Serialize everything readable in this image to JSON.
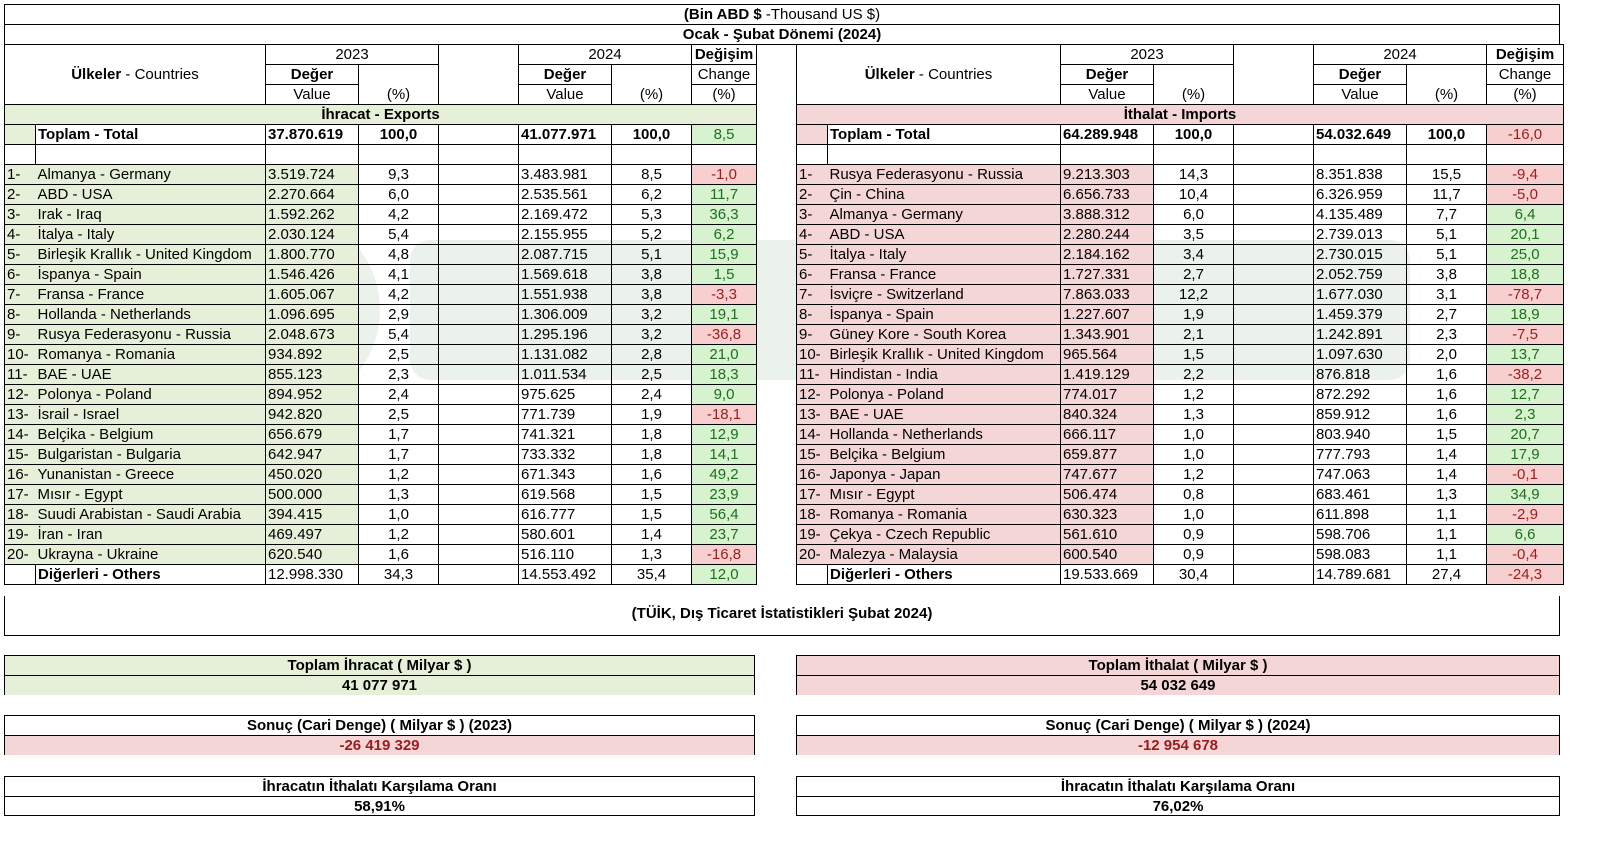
{
  "header": {
    "unit_bold": "(Bin ABD $",
    "unit_rest": " -Thousand US $)",
    "period": "Ocak - Şubat Dönemi (2024)"
  },
  "columns": {
    "countries_bold": "Ülkeler",
    "countries_rest": " - Countries",
    "y2023": "2023",
    "y2024": "2024",
    "deger": "Değer",
    "value": "Value",
    "pct": "(%)",
    "degisim": "Değişim",
    "change": "Change"
  },
  "exports": {
    "section_label": "İhracat - Exports",
    "total": {
      "name": "Toplam - Total",
      "v2023": "37.870.619",
      "p2023": "100,0",
      "v2024": "41.077.971",
      "p2024": "100,0",
      "change": "8,5"
    },
    "rows": [
      {
        "rank": "1-",
        "name": "Almanya - Germany",
        "v2023": "3.519.724",
        "p2023": "9,3",
        "v2024": "3.483.981",
        "p2024": "8,5",
        "change": "-1,0"
      },
      {
        "rank": "2-",
        "name": "ABD - USA",
        "v2023": "2.270.664",
        "p2023": "6,0",
        "v2024": "2.535.561",
        "p2024": "6,2",
        "change": "11,7"
      },
      {
        "rank": "3-",
        "name": "Irak - Iraq",
        "v2023": "1.592.262",
        "p2023": "4,2",
        "v2024": "2.169.472",
        "p2024": "5,3",
        "change": "36,3"
      },
      {
        "rank": "4-",
        "name": "İtalya - Italy",
        "v2023": "2.030.124",
        "p2023": "5,4",
        "v2024": "2.155.955",
        "p2024": "5,2",
        "change": "6,2"
      },
      {
        "rank": "5-",
        "name": "Birleşik Krallık - United Kingdom",
        "v2023": "1.800.770",
        "p2023": "4,8",
        "v2024": "2.087.715",
        "p2024": "5,1",
        "change": "15,9"
      },
      {
        "rank": "6-",
        "name": "İspanya - Spain",
        "v2023": "1.546.426",
        "p2023": "4,1",
        "v2024": "1.569.618",
        "p2024": "3,8",
        "change": "1,5"
      },
      {
        "rank": "7-",
        "name": "Fransa - France",
        "v2023": "1.605.067",
        "p2023": "4,2",
        "v2024": "1.551.938",
        "p2024": "3,8",
        "change": "-3,3"
      },
      {
        "rank": "8-",
        "name": "Hollanda - Netherlands",
        "v2023": "1.096.695",
        "p2023": "2,9",
        "v2024": "1.306.009",
        "p2024": "3,2",
        "change": "19,1"
      },
      {
        "rank": "9-",
        "name": "Rusya Federasyonu - Russia",
        "v2023": "2.048.673",
        "p2023": "5,4",
        "v2024": "1.295.196",
        "p2024": "3,2",
        "change": "-36,8"
      },
      {
        "rank": "10-",
        "name": "Romanya - Romania",
        "v2023": "934.892",
        "p2023": "2,5",
        "v2024": "1.131.082",
        "p2024": "2,8",
        "change": "21,0"
      },
      {
        "rank": "11-",
        "name": "BAE - UAE",
        "v2023": "855.123",
        "p2023": "2,3",
        "v2024": "1.011.534",
        "p2024": "2,5",
        "change": "18,3"
      },
      {
        "rank": "12-",
        "name": "Polonya - Poland",
        "v2023": "894.952",
        "p2023": "2,4",
        "v2024": "975.625",
        "p2024": "2,4",
        "change": "9,0"
      },
      {
        "rank": "13-",
        "name": "İsrail - Israel",
        "v2023": "942.820",
        "p2023": "2,5",
        "v2024": "771.739",
        "p2024": "1,9",
        "change": "-18,1"
      },
      {
        "rank": "14-",
        "name": "Belçika - Belgium",
        "v2023": "656.679",
        "p2023": "1,7",
        "v2024": "741.321",
        "p2024": "1,8",
        "change": "12,9"
      },
      {
        "rank": "15-",
        "name": "Bulgaristan - Bulgaria",
        "v2023": "642.947",
        "p2023": "1,7",
        "v2024": "733.332",
        "p2024": "1,8",
        "change": "14,1"
      },
      {
        "rank": "16-",
        "name": "Yunanistan - Greece",
        "v2023": "450.020",
        "p2023": "1,2",
        "v2024": "671.343",
        "p2024": "1,6",
        "change": "49,2"
      },
      {
        "rank": "17-",
        "name": "Mısır - Egypt",
        "v2023": "500.000",
        "p2023": "1,3",
        "v2024": "619.568",
        "p2024": "1,5",
        "change": "23,9"
      },
      {
        "rank": "18-",
        "name": "Suudi Arabistan - Saudi Arabia",
        "v2023": "394.415",
        "p2023": "1,0",
        "v2024": "616.777",
        "p2024": "1,5",
        "change": "56,4"
      },
      {
        "rank": "19-",
        "name": "İran - Iran",
        "v2023": "469.497",
        "p2023": "1,2",
        "v2024": "580.601",
        "p2024": "1,4",
        "change": "23,7"
      },
      {
        "rank": "20-",
        "name": "Ukrayna - Ukraine",
        "v2023": "620.540",
        "p2023": "1,6",
        "v2024": "516.110",
        "p2024": "1,3",
        "change": "-16,8"
      }
    ],
    "others": {
      "name": "Diğerleri - Others",
      "v2023": "12.998.330",
      "p2023": "34,3",
      "v2024": "14.553.492",
      "p2024": "35,4",
      "change": "12,0"
    }
  },
  "imports": {
    "section_label": "İthalat - Imports",
    "total": {
      "name": "Toplam - Total",
      "v2023": "64.289.948",
      "p2023": "100,0",
      "v2024": "54.032.649",
      "p2024": "100,0",
      "change": "-16,0"
    },
    "rows": [
      {
        "rank": "1-",
        "name": "Rusya Federasyonu - Russia",
        "v2023": "9.213.303",
        "p2023": "14,3",
        "v2024": "8.351.838",
        "p2024": "15,5",
        "change": "-9,4"
      },
      {
        "rank": "2-",
        "name": "Çin - China",
        "v2023": "6.656.733",
        "p2023": "10,4",
        "v2024": "6.326.959",
        "p2024": "11,7",
        "change": "-5,0"
      },
      {
        "rank": "3-",
        "name": "Almanya - Germany",
        "v2023": "3.888.312",
        "p2023": "6,0",
        "v2024": "4.135.489",
        "p2024": "7,7",
        "change": "6,4"
      },
      {
        "rank": "4-",
        "name": "ABD - USA",
        "v2023": "2.280.244",
        "p2023": "3,5",
        "v2024": "2.739.013",
        "p2024": "5,1",
        "change": "20,1"
      },
      {
        "rank": "5-",
        "name": "İtalya - Italy",
        "v2023": "2.184.162",
        "p2023": "3,4",
        "v2024": "2.730.015",
        "p2024": "5,1",
        "change": "25,0"
      },
      {
        "rank": "6-",
        "name": "Fransa - France",
        "v2023": "1.727.331",
        "p2023": "2,7",
        "v2024": "2.052.759",
        "p2024": "3,8",
        "change": "18,8"
      },
      {
        "rank": "7-",
        "name": "İsviçre - Switzerland",
        "v2023": "7.863.033",
        "p2023": "12,2",
        "v2024": "1.677.030",
        "p2024": "3,1",
        "change": "-78,7"
      },
      {
        "rank": "8-",
        "name": "İspanya - Spain",
        "v2023": "1.227.607",
        "p2023": "1,9",
        "v2024": "1.459.379",
        "p2024": "2,7",
        "change": "18,9"
      },
      {
        "rank": "9-",
        "name": "Güney Kore - South Korea",
        "v2023": "1.343.901",
        "p2023": "2,1",
        "v2024": "1.242.891",
        "p2024": "2,3",
        "change": "-7,5"
      },
      {
        "rank": "10-",
        "name": "Birleşik Krallık - United Kingdom",
        "v2023": "965.564",
        "p2023": "1,5",
        "v2024": "1.097.630",
        "p2024": "2,0",
        "change": "13,7"
      },
      {
        "rank": "11-",
        "name": "Hindistan - India",
        "v2023": "1.419.129",
        "p2023": "2,2",
        "v2024": "876.818",
        "p2024": "1,6",
        "change": "-38,2"
      },
      {
        "rank": "12-",
        "name": "Polonya - Poland",
        "v2023": "774.017",
        "p2023": "1,2",
        "v2024": "872.292",
        "p2024": "1,6",
        "change": "12,7"
      },
      {
        "rank": "13-",
        "name": "BAE - UAE",
        "v2023": "840.324",
        "p2023": "1,3",
        "v2024": "859.912",
        "p2024": "1,6",
        "change": "2,3"
      },
      {
        "rank": "14-",
        "name": "Hollanda - Netherlands",
        "v2023": "666.117",
        "p2023": "1,0",
        "v2024": "803.940",
        "p2024": "1,5",
        "change": "20,7"
      },
      {
        "rank": "15-",
        "name": "Belçika - Belgium",
        "v2023": "659.877",
        "p2023": "1,0",
        "v2024": "777.793",
        "p2024": "1,4",
        "change": "17,9"
      },
      {
        "rank": "16-",
        "name": "Japonya - Japan",
        "v2023": "747.677",
        "p2023": "1,2",
        "v2024": "747.063",
        "p2024": "1,4",
        "change": "-0,1"
      },
      {
        "rank": "17-",
        "name": "Mısır - Egypt",
        "v2023": "506.474",
        "p2023": "0,8",
        "v2024": "683.461",
        "p2024": "1,3",
        "change": "34,9"
      },
      {
        "rank": "18-",
        "name": "Romanya - Romania",
        "v2023": "630.323",
        "p2023": "1,0",
        "v2024": "611.898",
        "p2024": "1,1",
        "change": "-2,9"
      },
      {
        "rank": "19-",
        "name": "Çekya - Czech Republic",
        "v2023": "561.610",
        "p2023": "0,9",
        "v2024": "598.706",
        "p2024": "1,1",
        "change": "6,6"
      },
      {
        "rank": "20-",
        "name": "Malezya - Malaysia",
        "v2023": "600.540",
        "p2023": "0,9",
        "v2024": "598.083",
        "p2024": "1,1",
        "change": "-0,4"
      }
    ],
    "others": {
      "name": "Diğerleri - Others",
      "v2023": "19.533.669",
      "p2023": "30,4",
      "v2024": "14.789.681",
      "p2024": "27,4",
      "change": "-24,3"
    }
  },
  "source": "(TÜİK, Dış Ticaret İstatistikleri Şubat 2024)",
  "summary": {
    "total_exports_label": "Toplam İhracat ( Milyar $ )",
    "total_exports_value": "41 077 971",
    "total_imports_label": "Toplam İthalat ( Milyar $ )",
    "total_imports_value": "54 032 649",
    "balance_2023_label": "Sonuç (Cari Denge) ( Milyar $ ) (2023)",
    "balance_2023_value": "-26 419 329",
    "balance_2024_label": "Sonuç (Cari Denge) ( Milyar $ ) (2024)",
    "balance_2024_value": "-12 954 678",
    "coverage_label": "İhracatın İthalatı Karşılama Oranı",
    "coverage_2023_value": "58,91%",
    "coverage_2024_value": "76,02%"
  },
  "colors": {
    "exports_bg": "#e6f0d8",
    "imports_bg": "#f4d6d6",
    "positive_bg": "#d6f2cf",
    "negative_bg": "#f7cfcf"
  }
}
